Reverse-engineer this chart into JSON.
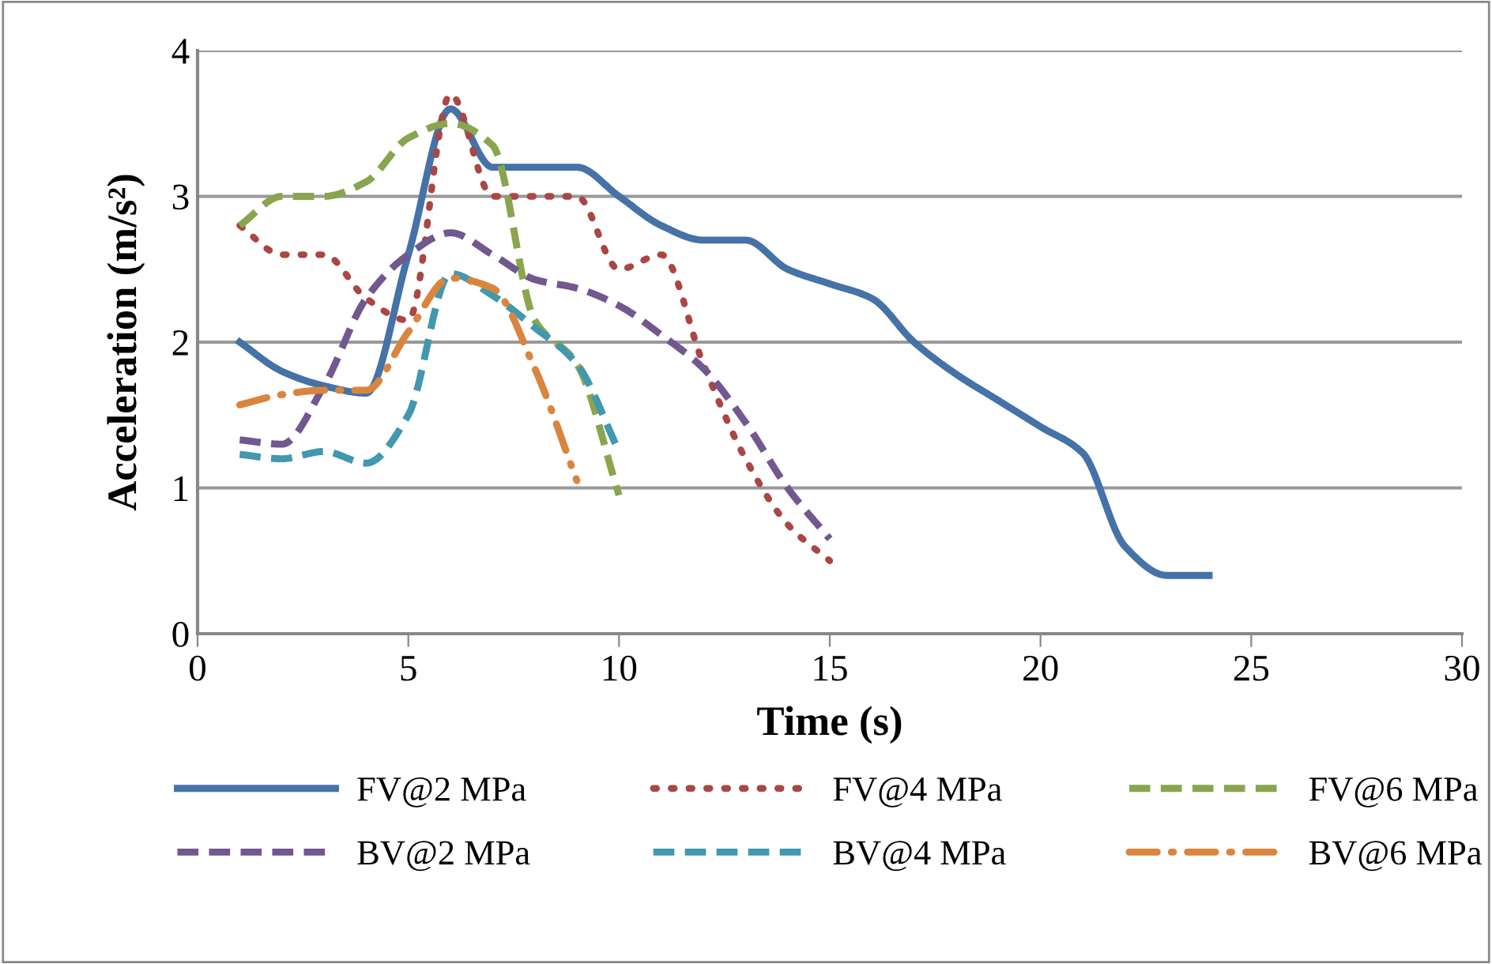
{
  "chart_data": {
    "type": "line",
    "xlabel": "Time (s)",
    "ylabel": "Acceleration (m/s²)",
    "xlim": [
      0,
      30
    ],
    "xticks": [
      0,
      5,
      10,
      15,
      20,
      25,
      30
    ],
    "ylim": [
      0,
      4
    ],
    "yticks": [
      0,
      1,
      2,
      3,
      4
    ],
    "grid": "y",
    "legend": "bottom",
    "marker": "none",
    "series": [
      {
        "name": "FV@2 MPa",
        "color": "#4572a7",
        "line_style": "solid",
        "x": [
          1,
          2,
          3,
          4,
          5,
          6,
          7,
          8,
          9,
          10,
          11,
          12,
          13,
          14,
          15,
          16,
          17,
          18,
          19,
          20,
          21,
          22,
          23,
          24
        ],
        "values": [
          2.0,
          1.8,
          1.7,
          1.65,
          2.6,
          3.6,
          3.2,
          3.2,
          3.2,
          3.0,
          2.8,
          2.7,
          2.7,
          2.5,
          2.4,
          2.3,
          2.0,
          1.78,
          1.6,
          1.42,
          1.24,
          0.6,
          0.4,
          0.4
        ]
      },
      {
        "name": "FV@4 MPa",
        "color": "#aa4643",
        "line_style": "dotted",
        "x": [
          1,
          2,
          3,
          4,
          5,
          6,
          7,
          8,
          9,
          10,
          11,
          12,
          13,
          14,
          15
        ],
        "values": [
          2.8,
          2.6,
          2.6,
          2.3,
          2.15,
          3.7,
          3.0,
          3.0,
          3.0,
          2.5,
          2.6,
          1.85,
          1.2,
          0.75,
          0.5
        ]
      },
      {
        "name": "FV@6 MPa",
        "color": "#89a54e",
        "line_style": "dashed",
        "x": [
          1,
          2,
          3,
          4,
          5,
          6,
          7,
          8,
          9,
          10
        ],
        "values": [
          2.8,
          3.0,
          3.0,
          3.1,
          3.4,
          3.5,
          3.35,
          2.15,
          1.85,
          0.95
        ]
      },
      {
        "name": "BV@2 MPa",
        "color": "#71588f",
        "line_style": "dashed",
        "x": [
          1,
          2,
          3,
          4,
          5,
          6,
          7,
          8,
          9,
          10,
          11,
          12,
          13,
          14,
          15
        ],
        "values": [
          1.33,
          1.3,
          1.7,
          2.3,
          2.6,
          2.75,
          2.6,
          2.43,
          2.37,
          2.25,
          2.05,
          1.82,
          1.45,
          1.0,
          0.65
        ]
      },
      {
        "name": "BV@4 MPa",
        "color": "#4198af",
        "line_style": "dashed",
        "x": [
          1,
          2,
          3,
          4,
          5,
          6,
          7,
          8,
          9,
          10
        ],
        "values": [
          1.23,
          1.2,
          1.25,
          1.17,
          1.5,
          2.47,
          2.32,
          2.1,
          1.85,
          1.25
        ]
      },
      {
        "name": "BV@6 MPa",
        "color": "#db843d",
        "line_style": "dashdot",
        "x": [
          1,
          2,
          3,
          4,
          5,
          6,
          7,
          8,
          9
        ],
        "values": [
          1.57,
          1.64,
          1.67,
          1.67,
          2.07,
          2.44,
          2.37,
          1.82,
          1.05
        ]
      }
    ]
  }
}
